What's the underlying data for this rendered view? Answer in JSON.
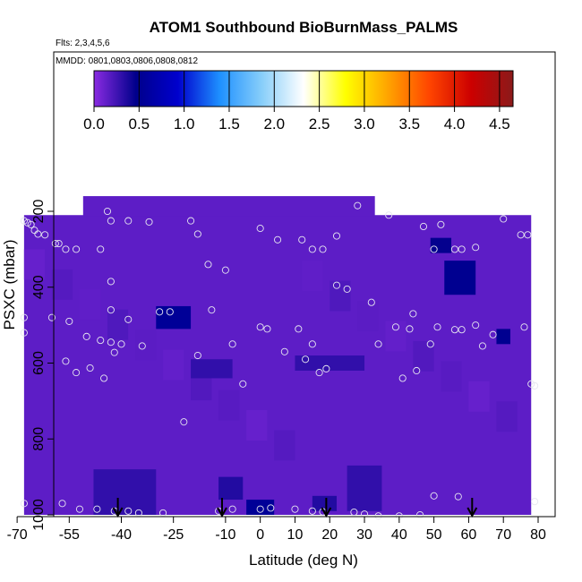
{
  "chart_data": {
    "type": "heatmap",
    "title": "ATOM1 Southbound BioBurnMass_PALMS",
    "annotations": [
      "Flts: 2,3,4,5,6",
      "MMDD: 0801,0803,0806,0808,0812"
    ],
    "xlabel": "Latitude (deg N)",
    "ylabel": "PSXC (mbar)",
    "xlim": [
      -70,
      80
    ],
    "ylim": [
      1000,
      100
    ],
    "x_ticks": [
      -70,
      -55,
      -40,
      -25,
      -10,
      0,
      10,
      20,
      30,
      40,
      50,
      60,
      70,
      80
    ],
    "y_ticks": [
      200,
      400,
      600,
      800,
      1000
    ],
    "colorbar": {
      "min": 0.0,
      "max": 4.65,
      "ticks": [
        "0.0",
        "0.5",
        "1.0",
        "1.5",
        "2.0",
        "2.5",
        "3.0",
        "3.5",
        "4.0",
        "4.5"
      ],
      "colors": [
        "#8a2be2",
        "#00008b",
        "#0000cd",
        "#1e90ff",
        "#87cefa",
        "#ffffff",
        "#ffff00",
        "#ffa500",
        "#ff4500",
        "#cc0000",
        "#8b1a1a"
      ]
    },
    "background_value": 0.15,
    "coverage": {
      "upper_lat_range": [
        -51,
        33
      ],
      "upper_top_pressure": 160,
      "side_top_pressure": 210,
      "lat_range": [
        -68,
        78
      ]
    },
    "enhanced_regions": [
      {
        "lat": [
          -30,
          -20
        ],
        "p": [
          450,
          510
        ],
        "value": 0.55
      },
      {
        "lat": [
          53,
          62
        ],
        "p": [
          330,
          420
        ],
        "value": 0.5
      },
      {
        "lat": [
          49,
          55
        ],
        "p": [
          270,
          310
        ],
        "value": 0.45
      },
      {
        "lat": [
          68,
          72
        ],
        "p": [
          510,
          550
        ],
        "value": 0.5
      },
      {
        "lat": [
          -4,
          4
        ],
        "p": [
          960,
          1000
        ],
        "value": 0.55
      },
      {
        "lat": [
          -12,
          -5
        ],
        "p": [
          900,
          960
        ],
        "value": 0.35
      },
      {
        "lat": [
          15,
          22
        ],
        "p": [
          950,
          990
        ],
        "value": 0.35
      },
      {
        "lat": [
          -48,
          -30
        ],
        "p": [
          880,
          1000
        ],
        "value": 0.3
      },
      {
        "lat": [
          25,
          35
        ],
        "p": [
          870,
          990
        ],
        "value": 0.3
      },
      {
        "lat": [
          -20,
          -8
        ],
        "p": [
          590,
          640
        ],
        "value": 0.3
      },
      {
        "lat": [
          10,
          30
        ],
        "p": [
          580,
          620
        ],
        "value": 0.3
      }
    ],
    "observations": [
      [
        -68,
        225
      ],
      [
        -67,
        230
      ],
      [
        -66,
        235
      ],
      [
        -65,
        250
      ],
      [
        -64,
        260
      ],
      [
        -62,
        262
      ],
      [
        -59,
        285
      ],
      [
        -58,
        285
      ],
      [
        -56,
        300
      ],
      [
        -53,
        300
      ],
      [
        -46,
        300
      ],
      [
        -44,
        200
      ],
      [
        -43,
        225
      ],
      [
        -38,
        225
      ],
      [
        -32,
        228
      ],
      [
        -20,
        225
      ],
      [
        -18,
        260
      ],
      [
        -15,
        340
      ],
      [
        -10,
        355
      ],
      [
        0,
        245
      ],
      [
        5,
        275
      ],
      [
        12,
        275
      ],
      [
        15,
        300
      ],
      [
        18,
        300
      ],
      [
        22,
        265
      ],
      [
        28,
        185
      ],
      [
        37,
        210
      ],
      [
        47,
        240
      ],
      [
        50,
        300
      ],
      [
        52,
        235
      ],
      [
        56,
        300
      ],
      [
        58,
        300
      ],
      [
        62,
        295
      ],
      [
        70,
        220
      ],
      [
        75,
        262
      ],
      [
        77,
        262
      ],
      [
        -43,
        385
      ],
      [
        -43,
        460
      ],
      [
        -43,
        545
      ],
      [
        -40,
        550
      ],
      [
        -38,
        485
      ],
      [
        -34,
        555
      ],
      [
        -42,
        572
      ],
      [
        -46,
        540
      ],
      [
        -50,
        530
      ],
      [
        -55,
        490
      ],
      [
        -60,
        480
      ],
      [
        -68,
        480
      ],
      [
        -68,
        520
      ],
      [
        -56,
        595
      ],
      [
        -53,
        625
      ],
      [
        -49,
        613
      ],
      [
        -45,
        640
      ],
      [
        -29,
        465
      ],
      [
        -26,
        465
      ],
      [
        -18,
        580
      ],
      [
        -14,
        460
      ],
      [
        -8,
        550
      ],
      [
        0,
        505
      ],
      [
        2,
        510
      ],
      [
        7,
        570
      ],
      [
        11,
        510
      ],
      [
        13,
        590
      ],
      [
        15,
        550
      ],
      [
        17,
        625
      ],
      [
        19,
        615
      ],
      [
        22,
        395
      ],
      [
        25,
        405
      ],
      [
        32,
        440
      ],
      [
        34,
        550
      ],
      [
        39,
        505
      ],
      [
        41,
        640
      ],
      [
        43,
        510
      ],
      [
        44,
        470
      ],
      [
        45,
        620
      ],
      [
        49,
        550
      ],
      [
        51,
        505
      ],
      [
        56,
        512
      ],
      [
        58,
        512
      ],
      [
        62,
        500
      ],
      [
        64,
        555
      ],
      [
        67,
        525
      ],
      [
        76,
        505
      ],
      [
        78,
        655
      ],
      [
        79,
        660
      ],
      [
        -22,
        755
      ],
      [
        -5,
        655
      ],
      [
        -68,
        970
      ],
      [
        -57,
        970
      ],
      [
        -52,
        985
      ],
      [
        -47,
        985
      ],
      [
        -42,
        990
      ],
      [
        -38,
        990
      ],
      [
        -35,
        995
      ],
      [
        -28,
        995
      ],
      [
        -12,
        990
      ],
      [
        -8,
        985
      ],
      [
        0,
        985
      ],
      [
        3,
        982
      ],
      [
        10,
        985
      ],
      [
        15,
        990
      ],
      [
        18,
        992
      ],
      [
        27,
        993
      ],
      [
        30,
        998
      ],
      [
        34,
        1003
      ],
      [
        40,
        1003
      ],
      [
        46,
        1000
      ],
      [
        50,
        950
      ],
      [
        57,
        952
      ],
      [
        79,
        965
      ]
    ],
    "arrows_at_lat": [
      -41,
      -11,
      19,
      61
    ]
  }
}
